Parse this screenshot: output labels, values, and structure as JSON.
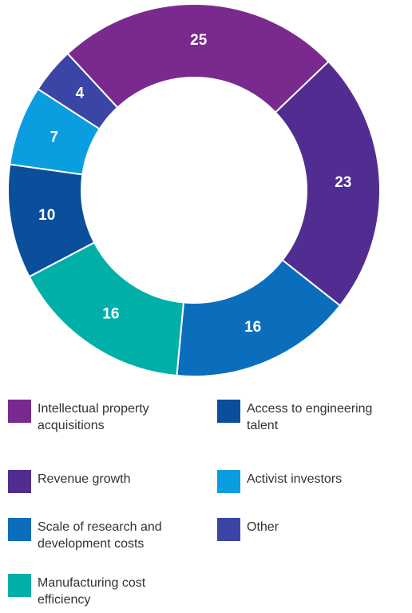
{
  "chart_data": {
    "type": "donut",
    "categories": [
      "Intellectual property acquisitions",
      "Revenue growth",
      "Scale of research and development costs",
      "Manufacturing cost efficiency",
      "Access to engineering talent",
      "Activist investors",
      "Other"
    ],
    "values": [
      25,
      23,
      16,
      16,
      10,
      7,
      4
    ],
    "colors": [
      "#7a2a8e",
      "#512d91",
      "#0a6ebd",
      "#00b0a8",
      "#0b4e9b",
      "#0a9de0",
      "#3b45a6"
    ]
  }
}
